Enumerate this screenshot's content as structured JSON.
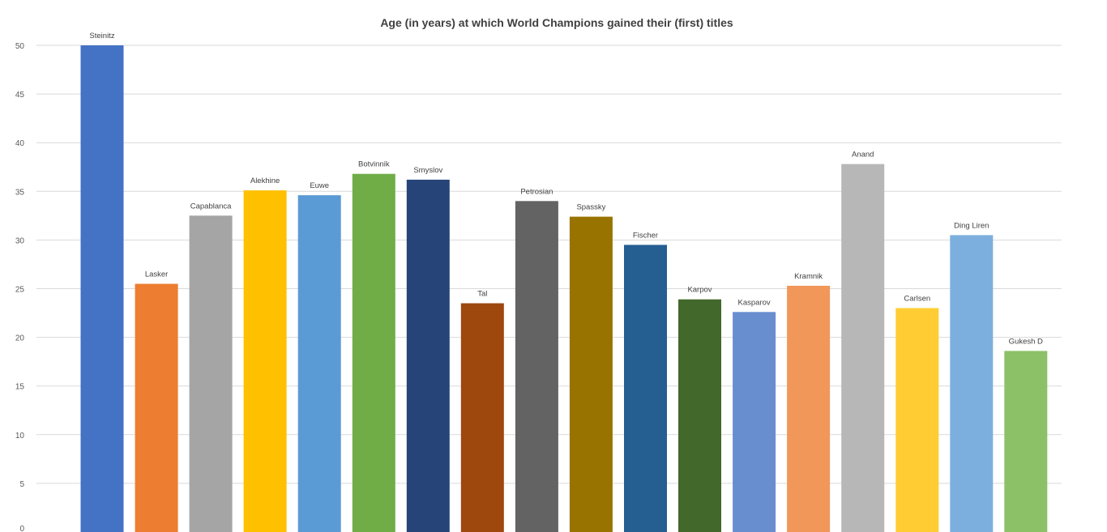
{
  "chart_data": {
    "type": "bar",
    "title": "Age (in years) at which World Champions gained their (first) titles",
    "xlabel": "",
    "ylabel": "",
    "ylim": [
      0,
      50
    ],
    "yticks": [
      "0",
      "5",
      "10",
      "15",
      "20",
      "25",
      "30",
      "35",
      "40",
      "45",
      "50"
    ],
    "grid": true,
    "legend": "none",
    "categories": [
      "Steinitz",
      "Lasker",
      "Capablanca",
      "Alekhine",
      "Euwe",
      "Botvinnik",
      "Smyslov",
      "Tal",
      "Petrosian",
      "Spassky",
      "Fischer",
      "Karpov",
      "Kasparov",
      "Kramnik",
      "Anand",
      "Carlsen",
      "Ding Liren",
      "Gukesh D"
    ],
    "values": [
      50.0,
      25.5,
      32.5,
      35.1,
      34.6,
      36.8,
      36.2,
      23.5,
      34.0,
      32.4,
      29.5,
      23.9,
      22.6,
      25.3,
      37.8,
      23.0,
      30.5,
      18.6
    ],
    "colors": [
      "#4472C4",
      "#ED7D31",
      "#A5A5A5",
      "#FFC000",
      "#5B9BD5",
      "#70AD47",
      "#264478",
      "#9E480E",
      "#636363",
      "#997300",
      "#255E91",
      "#43682B",
      "#698ED0",
      "#F1975A",
      "#B7B7B7",
      "#FFCD33",
      "#7CAFDD",
      "#8CC168"
    ]
  }
}
